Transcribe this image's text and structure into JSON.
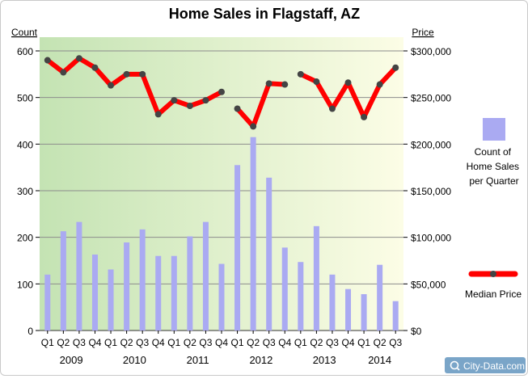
{
  "chart_data": {
    "type": "bar+line",
    "title": "Home Sales in Flagstaff, AZ",
    "left_axis_label": "Count",
    "right_axis_label": "Price",
    "left_ylim": [
      0,
      600
    ],
    "right_ylim": [
      0,
      300000
    ],
    "left_ticks": [
      "0",
      "100",
      "200",
      "300",
      "400",
      "500",
      "600"
    ],
    "right_ticks": [
      "$0",
      "$50,000",
      "$100,000",
      "$150,000",
      "$200,000",
      "$250,000",
      "$300,000"
    ],
    "categories": [
      "Q1",
      "Q2",
      "Q3",
      "Q4",
      "Q1",
      "Q2",
      "Q3",
      "Q4",
      "Q1",
      "Q2",
      "Q3",
      "Q4",
      "Q1",
      "Q2",
      "Q3",
      "Q4",
      "Q1",
      "Q2",
      "Q3",
      "Q4",
      "Q1",
      "Q2",
      "Q3"
    ],
    "years": [
      "2009",
      "2010",
      "2011",
      "2012",
      "2013",
      "2014"
    ],
    "grid": true,
    "legend_placement": "right",
    "series": [
      {
        "name": "Count of Home Sales per Quarter",
        "legend_lines": [
          "Count of",
          "Home Sales",
          "per Quarter"
        ],
        "kind": "bar",
        "color": "#aaaaf2",
        "values": [
          120,
          213,
          233,
          163,
          131,
          189,
          217,
          160,
          160,
          202,
          233,
          143,
          355,
          415,
          328,
          178,
          147,
          224,
          120,
          89,
          78,
          141,
          63
        ]
      },
      {
        "name": "Median Price",
        "legend_lines": [
          "Median Price"
        ],
        "kind": "line",
        "color": "#ff0000",
        "values": [
          290000,
          277000,
          292000,
          282000,
          263000,
          275000,
          275000,
          232000,
          247000,
          241000,
          247000,
          256000,
          238000,
          219000,
          265000,
          264000,
          275000,
          267000,
          238000,
          266000,
          229000,
          264000,
          282000
        ],
        "breaks_after_index": [
          11,
          15
        ]
      }
    ]
  },
  "watermark": "City-Data.com",
  "colors": {
    "plot_bg_left": "#c4e3b3",
    "plot_bg_right": "#fcfde6",
    "grid": "#8c8c8c",
    "marker": "#444444"
  }
}
